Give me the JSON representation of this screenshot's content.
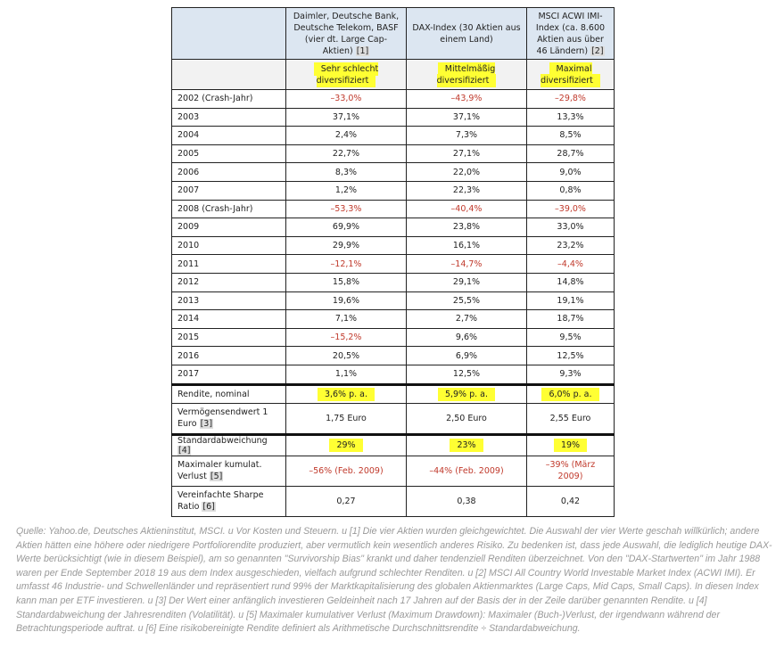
{
  "columns": [
    {
      "header": "Daimler, Deutsche Bank, Deutsche Telekom, BASF (vier dt. Large Cap-Aktien)",
      "note": "[1]",
      "rating": "Sehr schlecht diversifiziert"
    },
    {
      "header": "DAX-Index (30 Aktien aus einem Land)",
      "note": "",
      "rating": "Mittelmäßig diversifiziert"
    },
    {
      "header": "MSCI ACWI IMI-Index (ca. 8.600 Aktien aus über 46 Ländern)",
      "note": "[2]",
      "rating": "Maximal diversifiziert"
    }
  ],
  "years": [
    {
      "label": "2002 (Crash-Jahr)",
      "values": [
        "–33,0%",
        "–43,9%",
        "–29,8%"
      ],
      "neg": [
        true,
        true,
        true
      ]
    },
    {
      "label": "2003",
      "values": [
        "37,1%",
        "37,1%",
        "13,3%"
      ],
      "neg": [
        false,
        false,
        false
      ]
    },
    {
      "label": "2004",
      "values": [
        "2,4%",
        "7,3%",
        "8,5%"
      ],
      "neg": [
        false,
        false,
        false
      ]
    },
    {
      "label": "2005",
      "values": [
        "22,7%",
        "27,1%",
        "28,7%"
      ],
      "neg": [
        false,
        false,
        false
      ]
    },
    {
      "label": "2006",
      "values": [
        "8,3%",
        "22,0%",
        "9,0%"
      ],
      "neg": [
        false,
        false,
        false
      ]
    },
    {
      "label": "2007",
      "values": [
        "1,2%",
        "22,3%",
        "0,8%"
      ],
      "neg": [
        false,
        false,
        false
      ]
    },
    {
      "label": "2008 (Crash-Jahr)",
      "values": [
        "–53,3%",
        "–40,4%",
        "–39,0%"
      ],
      "neg": [
        true,
        true,
        true
      ]
    },
    {
      "label": "2009",
      "values": [
        "69,9%",
        "23,8%",
        "33,0%"
      ],
      "neg": [
        false,
        false,
        false
      ]
    },
    {
      "label": "2010",
      "values": [
        "29,9%",
        "16,1%",
        "23,2%"
      ],
      "neg": [
        false,
        false,
        false
      ]
    },
    {
      "label": "2011",
      "values": [
        "–12,1%",
        "–14,7%",
        "–4,4%"
      ],
      "neg": [
        true,
        true,
        true
      ]
    },
    {
      "label": "2012",
      "values": [
        "15,8%",
        "29,1%",
        "14,8%"
      ],
      "neg": [
        false,
        false,
        false
      ]
    },
    {
      "label": "2013",
      "values": [
        "19,6%",
        "25,5%",
        "19,1%"
      ],
      "neg": [
        false,
        false,
        false
      ]
    },
    {
      "label": "2014",
      "values": [
        "7,1%",
        "2,7%",
        "18,7%"
      ],
      "neg": [
        false,
        false,
        false
      ]
    },
    {
      "label": "2015",
      "values": [
        "–15,2%",
        "9,6%",
        "9,5%"
      ],
      "neg": [
        true,
        false,
        false
      ]
    },
    {
      "label": "2016",
      "values": [
        "20,5%",
        "6,9%",
        "12,5%"
      ],
      "neg": [
        false,
        false,
        false
      ]
    },
    {
      "label": "2017",
      "values": [
        "1,1%",
        "12,5%",
        "9,3%"
      ],
      "neg": [
        false,
        false,
        false
      ]
    }
  ],
  "summary": [
    {
      "label": "Rendite, nominal",
      "note": "",
      "values": [
        "3,6% p. a.",
        "5,9% p. a.",
        "6,0% p. a."
      ],
      "highlight": true,
      "thick": true,
      "red": false
    },
    {
      "label": "Vermögensendwert 1 Euro",
      "note": "[3]",
      "values": [
        "1,75 Euro",
        "2,50 Euro",
        "2,55 Euro"
      ],
      "highlight": false,
      "thick": false,
      "red": false
    },
    {
      "label": "Standardabweichung",
      "note": "[4]",
      "values": [
        "29%",
        "23%",
        "19%"
      ],
      "highlight": true,
      "thick": true,
      "red": false
    },
    {
      "label": "Maximaler kumulat. Verlust",
      "note": "[5]",
      "values": [
        "–56% (Feb. 2009)",
        "–44% (Feb. 2009)",
        "–39% (März 2009)"
      ],
      "highlight": false,
      "thick": false,
      "red": true
    },
    {
      "label": "Vereinfachte Sharpe Ratio",
      "note": "[6]",
      "values": [
        "0,27",
        "0,38",
        "0,42"
      ],
      "highlight": false,
      "thick": false,
      "red": false
    }
  ],
  "footnote": "Quelle: Yahoo.de, Deutsches Aktieninstitut, MSCI. u Vor Kosten und Steuern. u  [1] Die vier Aktien wurden gleichgewichtet. Die Auswahl der vier Werte geschah willkürlich; andere Aktien hätten eine höhere oder niedrigere Portfoliorendite produziert, aber vermutlich kein wesentlich anderes Risiko. Zu bedenken ist, dass jede Auswahl, die lediglich heutige DAX-Werte berücksichtigt (wie in diesem Beispiel), am so genannten \"Survivorship Bias\" krankt und daher tendenziell Renditen überzeichnet. Von den \"DAX-Startwerten\" im Jahr 1988 waren per Ende September 2018 19 aus dem Index ausgeschieden, vielfach aufgrund schlechter Renditen. u [2] MSCI All Country World Investable Market Index (ACWI IMI). Er umfasst 46 Industrie- und Schwellenländer und repräsentiert rund 99% der Marktkapitalisierung des globalen Aktienmarktes (Large Caps, Mid Caps, Small Caps). In diesen Index kann man per ETF investieren. u [3] Der Wert einer anfänglich investieren Geldeinheit nach 17 Jahren auf der Basis der in der Zeile darüber genannten Rendite. u [4] Standardabweichung der Jahresrenditen (Volatilität). u [5] Maximaler kumulativer Verlust (Maximum Drawdown): Maximaler (Buch-)Verlust, der irgendwann während der Betrachtungsperiode auftrat. u [6] Eine risikobereinigte Rendite definiert als Arithmetische Durchschnittsrendite ÷ Standardabweichung.",
  "colors": {
    "negative": "#c0392b",
    "highlight": "#ffff33",
    "header_bg": "#dce6f1"
  }
}
